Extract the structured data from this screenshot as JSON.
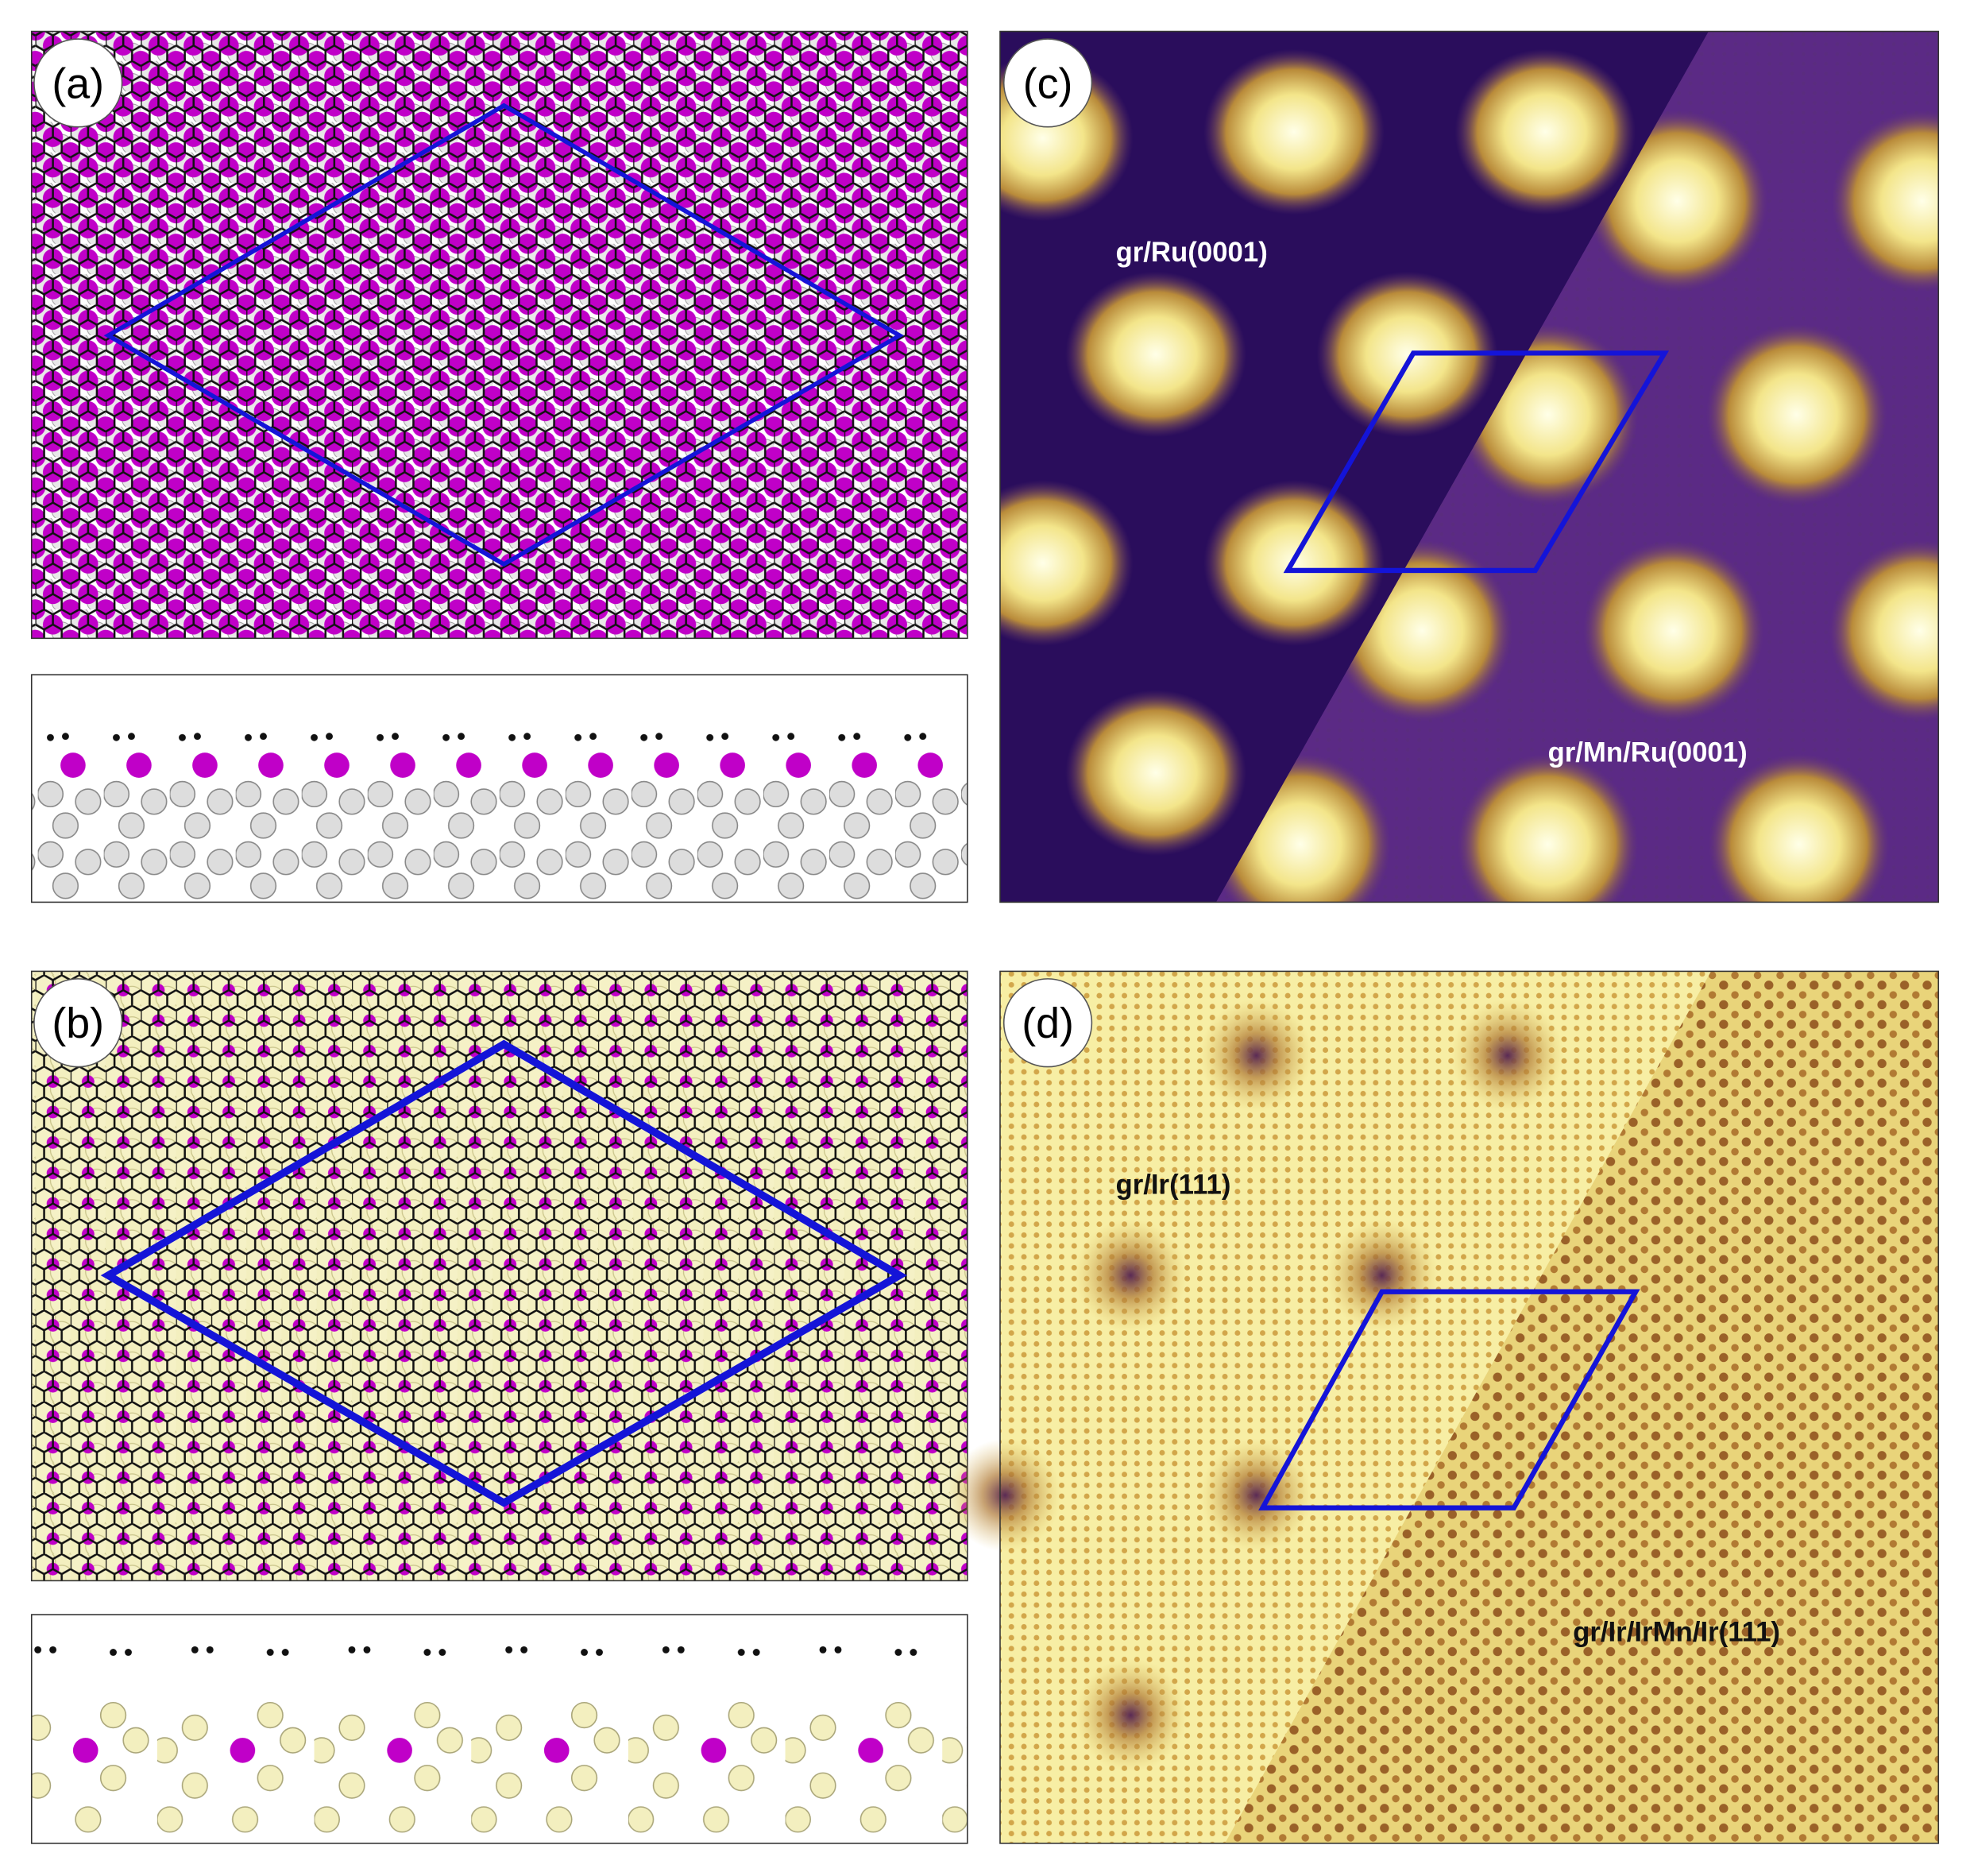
{
  "panels": [
    {
      "label": "(a)"
    },
    {
      "label": "(b)"
    },
    {
      "label": "(c)",
      "texts": [
        "gr/Ru(0001)",
        "gr/Mn/Ru(0001)"
      ]
    },
    {
      "label": "(d)",
      "texts": [
        "gr/Ir(111)",
        "gr/Ir/IrMn/Ir(111)"
      ]
    }
  ]
}
